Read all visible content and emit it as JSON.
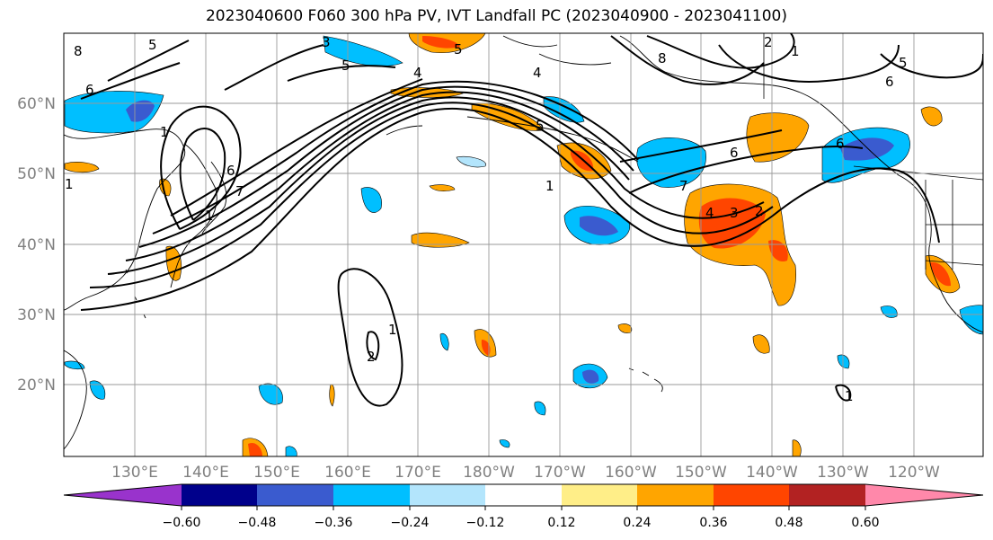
{
  "title": "2023040600 F060 300 hPa PV, IVT Landfall PC (2023040900 - 2023041100)",
  "longitude_labels": [
    "130°E",
    "140°E",
    "150°E",
    "160°E",
    "170°E",
    "180°W",
    "170°W",
    "160°W",
    "150°W",
    "140°W",
    "130°W",
    "120°W"
  ],
  "latitude_labels": [
    "60°N",
    "50°N",
    "40°N",
    "30°N",
    "20°N"
  ],
  "colorbar": {
    "colors": [
      "#9933cc",
      "#00008b",
      "#3a5bcf",
      "#00bfff",
      "#b3e5fc",
      "#ffffff",
      "#ffee88",
      "#ffa500",
      "#ff4500",
      "#b22222",
      "#ff88aa"
    ],
    "tick_labels": [
      "−0.60",
      "−0.48",
      "−0.36",
      "−0.24",
      "−0.12",
      "0.12",
      "0.24",
      "0.36",
      "0.48",
      "0.60"
    ]
  },
  "contour_labels": [
    "8",
    "5",
    "3",
    "5",
    "4",
    "6",
    "1",
    "5",
    "7",
    "6",
    "1",
    "1",
    "4",
    "5",
    "1",
    "6",
    "7",
    "8",
    "2",
    "1",
    "6",
    "5",
    "6",
    "4",
    "3",
    "2",
    "2",
    "1",
    "1"
  ]
}
